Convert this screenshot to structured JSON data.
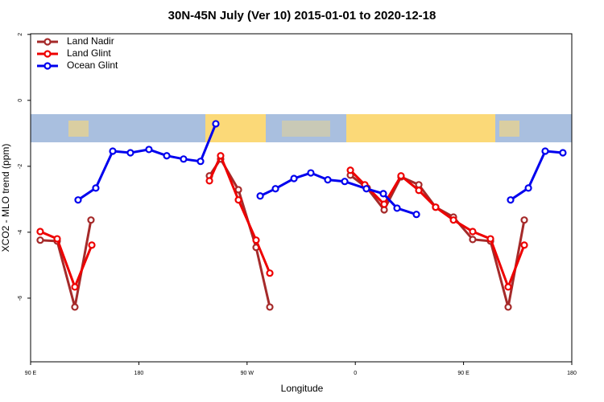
{
  "chart_data": {
    "type": "line",
    "title": "30N-45N July (Ver 10)   2015-01-01 to 2020-12-18",
    "x_label": "Longitude",
    "y_label": "XCO2 - MLO trend (ppm)",
    "xlim": [
      90,
      540
    ],
    "ylim": [
      -7.93,
      2.02
    ],
    "xticks": [
      {
        "value": 90,
        "label": "90 E"
      },
      {
        "value": 180,
        "label": "180"
      },
      {
        "value": 270,
        "label": "90 W"
      },
      {
        "value": 360,
        "label": "0"
      },
      {
        "value": 450,
        "label": "90 E"
      },
      {
        "value": 540,
        "label": "180"
      }
    ],
    "yticks": [
      -6,
      -4,
      -2,
      0,
      2
    ],
    "legend": "top-left",
    "series": [
      {
        "name": "Land Nadir",
        "color": "#a52a2a",
        "x": [
          98,
          112.1,
          126.8,
          140.2,
          null,
          238.7,
          248,
          262.8,
          277.5,
          288.9,
          null,
          355.9,
          369.9,
          384,
          398,
          412.8,
          426.8,
          441.6,
          457.6,
          472.4,
          487.1,
          500.5
        ],
        "values": [
          -4.24,
          -4.27,
          -6.27,
          -3.63,
          null,
          -2.29,
          -1.78,
          -2.71,
          -4.46,
          -6.27,
          null,
          -2.27,
          -2.66,
          -3.32,
          -2.32,
          -2.56,
          -3.24,
          -3.54,
          -4.22,
          -4.27,
          -6.27,
          -3.63
        ]
      },
      {
        "name": "Land Glint",
        "color": "#ee0000",
        "x": [
          98,
          112.1,
          126.8,
          140.9,
          null,
          238.7,
          248,
          262.8,
          277.5,
          288.9,
          null,
          355.9,
          367.9,
          384,
          398,
          412.8,
          426.8,
          441.6,
          457.6,
          472.4,
          487.1,
          500.5
        ],
        "values": [
          -3.98,
          -4.2,
          -5.66,
          -4.39,
          null,
          -2.44,
          -1.68,
          -3.02,
          -4.24,
          -5.24,
          null,
          -2.12,
          -2.56,
          -3.15,
          -2.29,
          -2.73,
          -3.24,
          -3.63,
          -3.98,
          -4.2,
          -5.66,
          -4.39
        ]
      },
      {
        "name": "Ocean Glint",
        "color": "#0000ee",
        "x": [
          129.5,
          144.2,
          158.3,
          173,
          188.4,
          203.2,
          217.2,
          231.3,
          244,
          null,
          280.9,
          293.6,
          309,
          323,
          337.1,
          351.2,
          369.2,
          383.3,
          394.7,
          410.8,
          null,
          489.1,
          503.9,
          517.9,
          532.6
        ],
        "values": [
          -3.02,
          -2.66,
          -1.54,
          -1.59,
          -1.49,
          -1.68,
          -1.78,
          -1.85,
          -0.71,
          null,
          -2.9,
          -2.68,
          -2.37,
          -2.2,
          -2.41,
          -2.46,
          -2.68,
          -2.83,
          -3.27,
          -3.46,
          null,
          -3.02,
          -2.66,
          -1.54,
          -1.59
        ]
      }
    ]
  }
}
